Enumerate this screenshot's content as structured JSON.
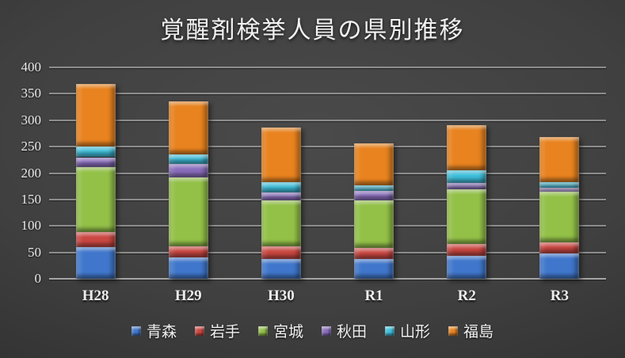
{
  "chart_data": {
    "type": "bar",
    "stacked": true,
    "title": "覚醒剤検挙人員の県別推移",
    "categories": [
      "H28",
      "H29",
      "H30",
      "R1",
      "R2",
      "R3"
    ],
    "series": [
      {
        "name": "青森",
        "key": "aomori",
        "color": "#4077CC",
        "values": [
          60,
          41,
          38,
          38,
          43,
          48
        ]
      },
      {
        "name": "岩手",
        "key": "iwate",
        "color": "#CB4742",
        "values": [
          28,
          20,
          23,
          20,
          23,
          21
        ]
      },
      {
        "name": "宮城",
        "key": "miyagi",
        "color": "#93C148",
        "values": [
          124,
          131,
          87,
          91,
          103,
          96
        ]
      },
      {
        "name": "秋田",
        "key": "akita",
        "color": "#8A6EBD",
        "values": [
          18,
          25,
          16,
          17,
          12,
          8
        ]
      },
      {
        "name": "山形",
        "key": "yamagata",
        "color": "#3FC0DC",
        "values": [
          20,
          18,
          19,
          11,
          25,
          10
        ]
      },
      {
        "name": "福島",
        "key": "fukushima",
        "color": "#E8831F",
        "values": [
          119,
          100,
          103,
          79,
          85,
          85
        ]
      }
    ],
    "totals": [
      369,
      335,
      286,
      256,
      291,
      268
    ],
    "xlabel": "",
    "ylabel": "",
    "ylim": [
      0,
      400
    ],
    "y_ticks": [
      0,
      50,
      100,
      150,
      200,
      250,
      300,
      350,
      400
    ],
    "grid": true,
    "legend_position": "bottom"
  }
}
